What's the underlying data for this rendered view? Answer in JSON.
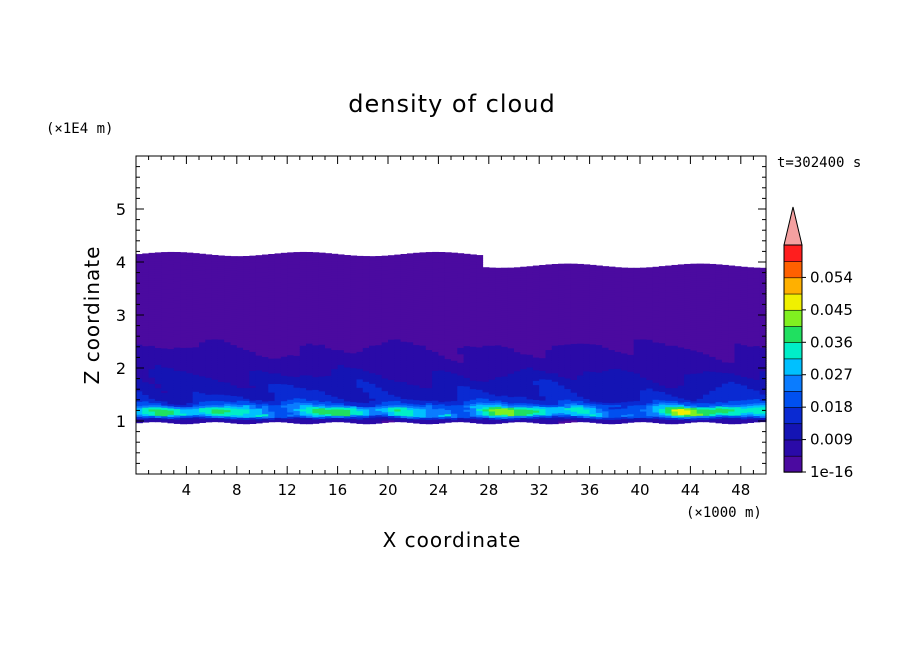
{
  "chart_data": {
    "type": "heatmap",
    "title": "density of cloud",
    "time_label": "t=302400 s",
    "xlabel": "X coordinate",
    "ylabel": "Z coordinate",
    "x_scale_label": "(×1000 m)",
    "y_scale_label": "(×1E4 m)",
    "xlim": [
      0,
      50
    ],
    "ylim": [
      0,
      6
    ],
    "x_ticks": [
      "4",
      "8",
      "12",
      "16",
      "20",
      "24",
      "28",
      "32",
      "36",
      "40",
      "44",
      "48"
    ],
    "x_tick_values": [
      4,
      8,
      12,
      16,
      20,
      24,
      28,
      32,
      36,
      40,
      44,
      48
    ],
    "y_ticks": [
      "1",
      "2",
      "3",
      "4",
      "5"
    ],
    "y_tick_values": [
      1,
      2,
      3,
      4,
      5
    ],
    "colorbar": {
      "labels": [
        "1e-16",
        "0.009",
        "0.018",
        "0.027",
        "0.036",
        "0.045",
        "0.054"
      ],
      "levels": [
        1e-16,
        0.0045,
        0.009,
        0.0135,
        0.018,
        0.0225,
        0.027,
        0.0315,
        0.036,
        0.0405,
        0.045,
        0.0495,
        0.054,
        0.0585
      ],
      "colors": [
        "#4b0aa0",
        "#2a0aa8",
        "#1414b4",
        "#0a2ad2",
        "#0050f0",
        "#0a7cff",
        "#00c0ff",
        "#00eec8",
        "#20e060",
        "#80f020",
        "#f0f000",
        "#ffb000",
        "#ff6000",
        "#ff1e1e"
      ],
      "over_color": "#f4a0a0"
    },
    "profile": {
      "z": [
        1.0,
        1.1,
        1.2,
        1.3,
        1.4,
        1.6,
        1.8,
        2.0,
        2.3,
        2.6,
        3.0,
        3.5,
        4.1
      ],
      "density": [
        0.006,
        0.03,
        0.032,
        0.02,
        0.014,
        0.012,
        0.01,
        0.007,
        0.005,
        0.003,
        0.0015,
        0.0008,
        0.0003
      ],
      "cloud_base": 0.97,
      "cloud_top": 4.15
    }
  },
  "colors": {
    "background": "#ffffff",
    "no_data": "#ffffff",
    "axis": "#000000"
  }
}
